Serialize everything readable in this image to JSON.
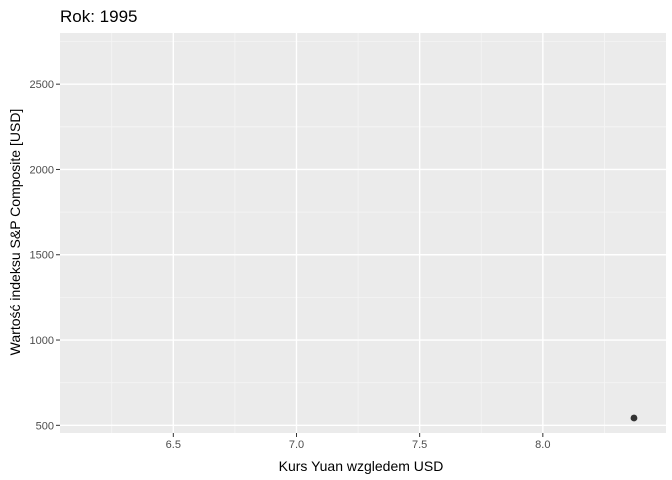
{
  "chart_data": {
    "type": "scatter",
    "title": "Rok: 1995",
    "xlabel": "Kurs Yuan wzgledem USD",
    "ylabel": "Wartość indeksu S&P Composite [USD]",
    "xlim": [
      6.04,
      8.5
    ],
    "ylim": [
      455,
      2800
    ],
    "x_ticks": [
      6.5,
      7.0,
      7.5,
      8.0
    ],
    "x_tick_labels": [
      "6.5",
      "7.0",
      "7.5",
      "8.0"
    ],
    "y_ticks": [
      500,
      1000,
      1500,
      2000,
      2500
    ],
    "y_tick_labels": [
      "500",
      "1000",
      "1500",
      "2000",
      "2500"
    ],
    "grid": true,
    "points": [
      {
        "x": 8.37,
        "y": 543
      }
    ],
    "colors": {
      "panel_background": "#ebebeb",
      "grid_major": "#ffffff",
      "grid_minor": "#f5f5f5",
      "point": "#333333",
      "tick_text": "#4d4d4d",
      "tick_mark": "#333333"
    }
  }
}
